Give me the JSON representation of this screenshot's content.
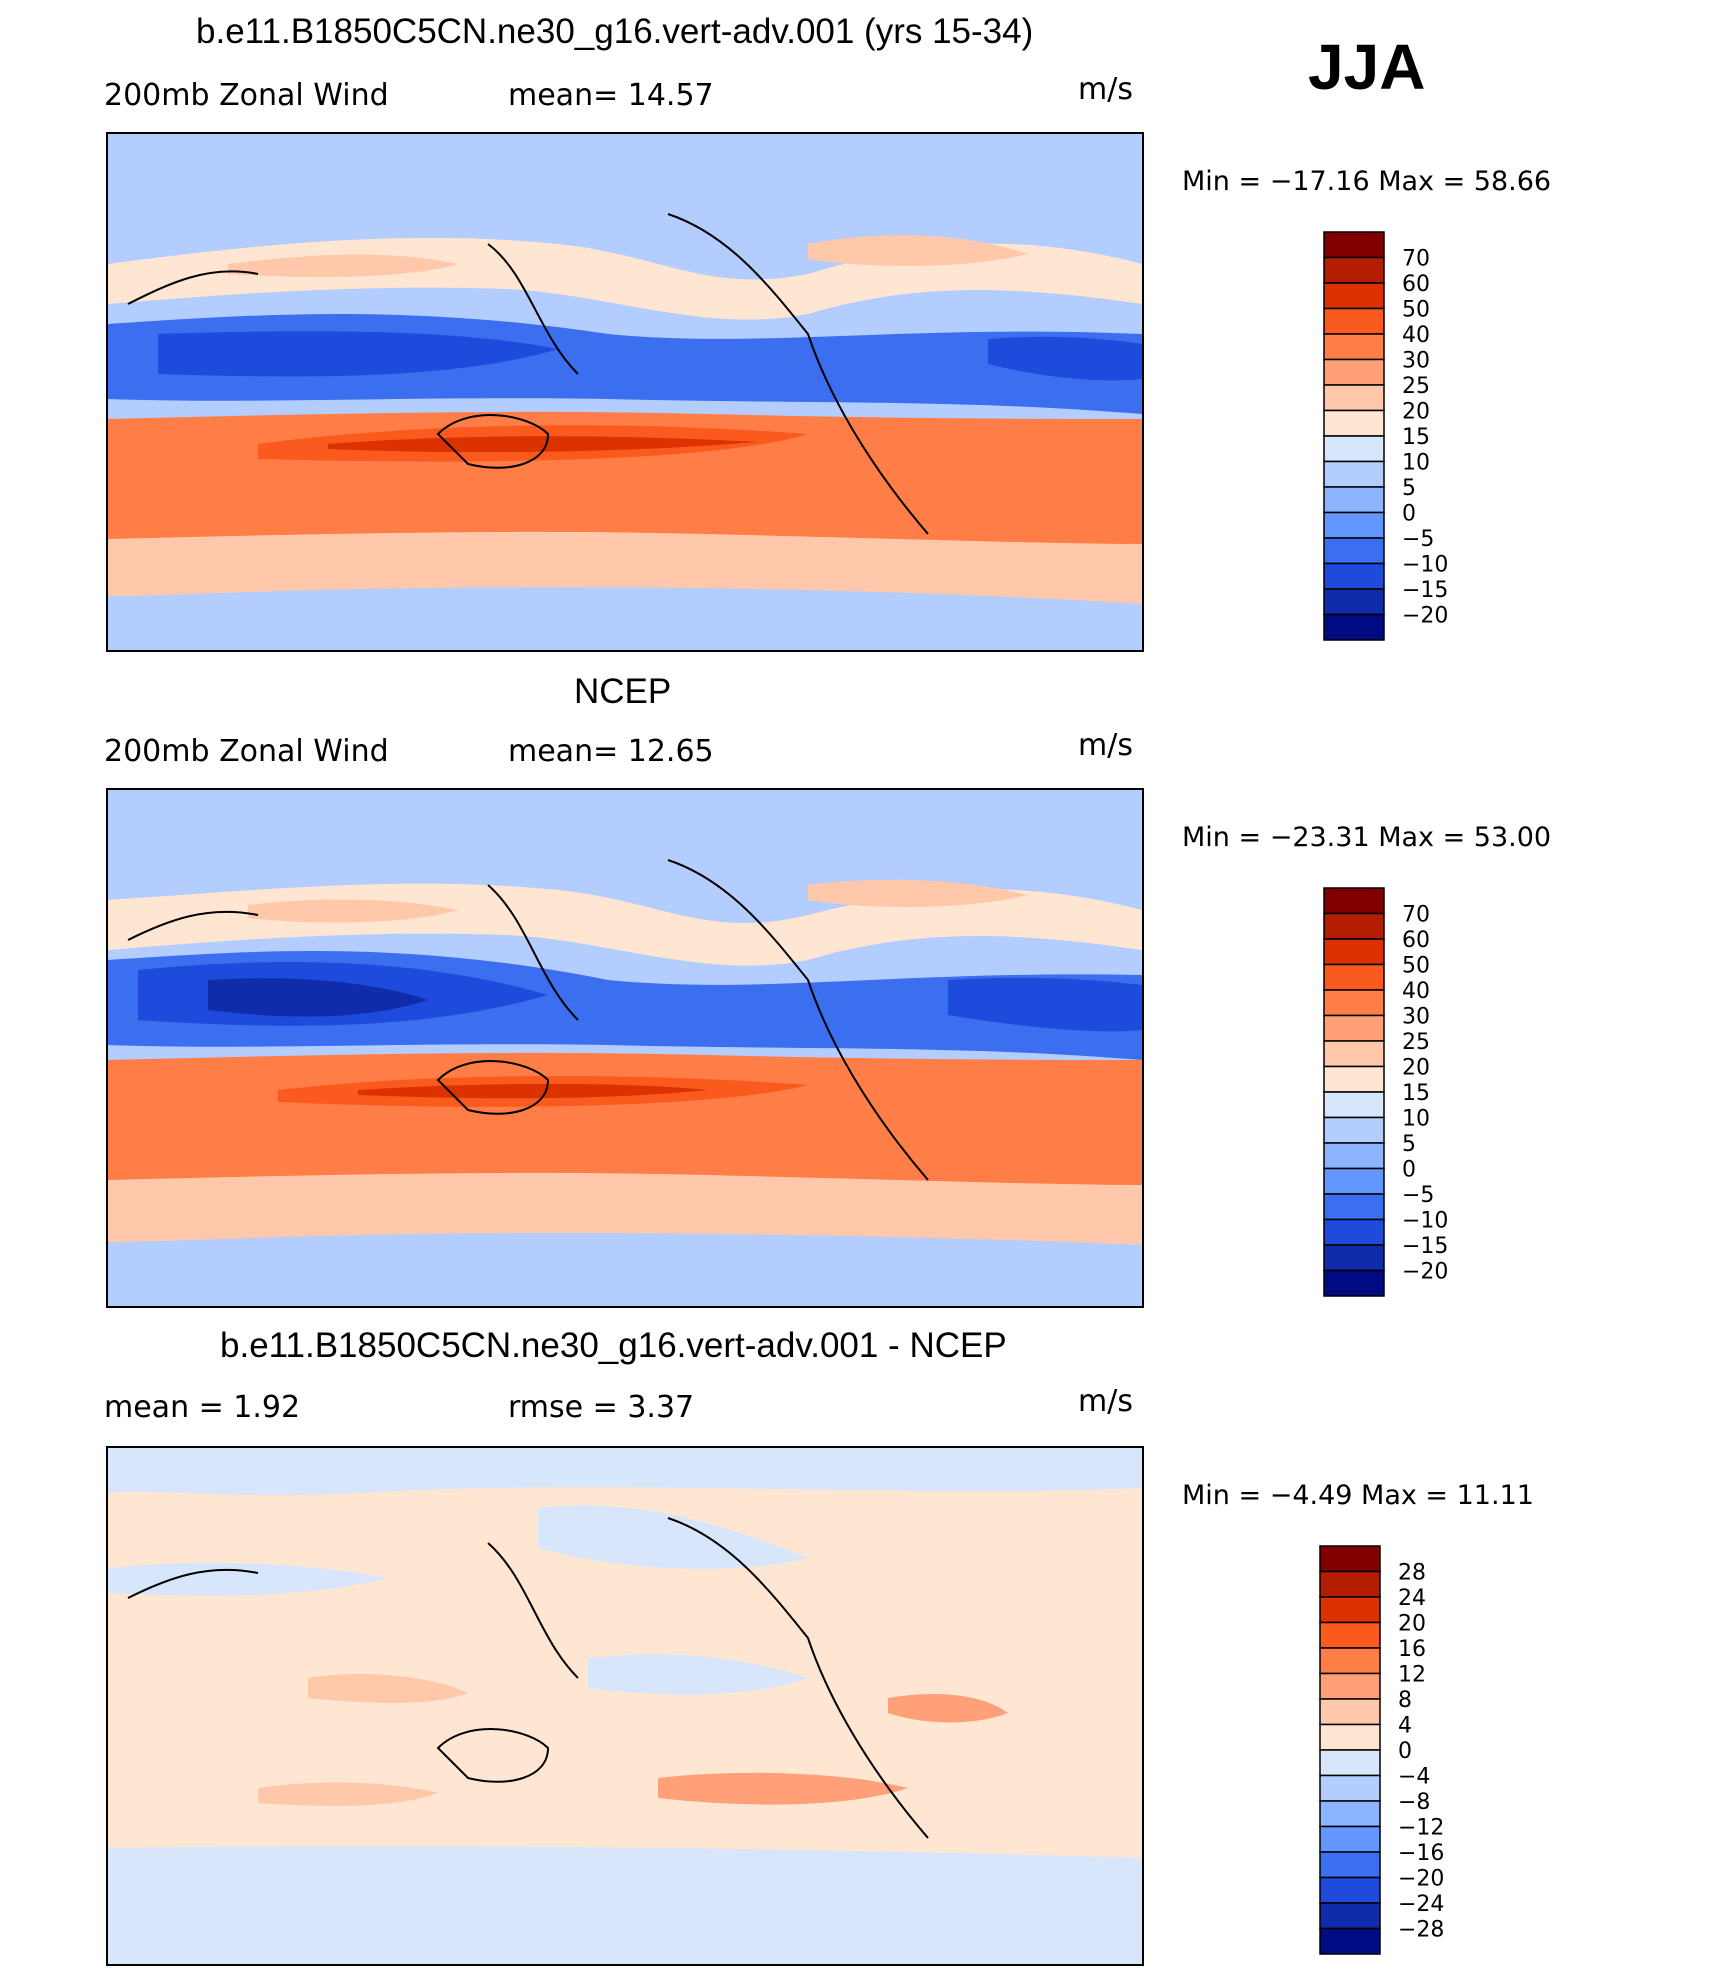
{
  "season": "JJA",
  "panels": [
    {
      "title": "b.e11.B1850C5CN.ne30_g16.vert-adv.001 (yrs 15-34)",
      "left_label": "200mb  Zonal  Wind",
      "mid_label": "mean=   14.57",
      "units": "m/s",
      "minmax": "Min  =  −17.16  Max  =    58.66",
      "colorbar_labels": [
        "70",
        "60",
        "50",
        "40",
        "30",
        "25",
        "20",
        "15",
        "10",
        "5",
        "0",
        "−5",
        "−10",
        "−15",
        "−20"
      ]
    },
    {
      "title": "NCEP",
      "left_label": "200mb  Zonal  Wind",
      "mid_label": "mean=   12.65",
      "units": "m/s",
      "minmax": "Min  =  −23.31  Max  =    53.00",
      "colorbar_labels": [
        "70",
        "60",
        "50",
        "40",
        "30",
        "25",
        "20",
        "15",
        "10",
        "5",
        "0",
        "−5",
        "−10",
        "−15",
        "−20"
      ]
    },
    {
      "title": "b.e11.B1850C5CN.ne30_g16.vert-adv.001 - NCEP",
      "left_label": "mean  =      1.92",
      "mid_label": "rmse  =      3.37",
      "units": "m/s",
      "minmax": "Min  =    −4.49  Max  =     11.11",
      "colorbar_labels": [
        "28",
        "24",
        "20",
        "16",
        "12",
        "8",
        "4",
        "0",
        "−4",
        "−8",
        "−12",
        "−16",
        "−20",
        "−24",
        "−28"
      ]
    }
  ],
  "colors": {
    "colorbar_top_to_bottom": [
      "#800000",
      "#B41E00",
      "#DC3200",
      "#FA5A1E",
      "#FF7D46",
      "#FFA078",
      "#FFC8AA",
      "#FFE6D2",
      "#D7E6FA",
      "#B4CDFF",
      "#8CB4FF",
      "#6496FF",
      "#3C6EF0",
      "#1E4BDC",
      "#0F2DAA",
      "#000A82"
    ]
  }
}
